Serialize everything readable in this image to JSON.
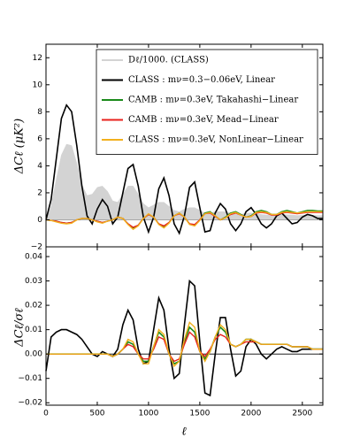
{
  "chart_data": [
    {
      "type": "line",
      "ylabel": "ΔCℓ (μK²)",
      "x": [
        0,
        50,
        100,
        150,
        200,
        250,
        300,
        350,
        400,
        450,
        500,
        550,
        600,
        650,
        700,
        750,
        800,
        850,
        900,
        950,
        1000,
        1050,
        1100,
        1150,
        1200,
        1250,
        1300,
        1350,
        1400,
        1450,
        1500,
        1550,
        1600,
        1650,
        1700,
        1750,
        1800,
        1850,
        1900,
        1950,
        2000,
        2050,
        2100,
        2150,
        2200,
        2250,
        2300,
        2350,
        2400,
        2450,
        2500,
        2550,
        2600,
        2650,
        2700
      ],
      "xlim": [
        0,
        2700
      ],
      "ylim": [
        -2,
        13
      ],
      "yticks": [
        {
          "value": -2,
          "label": "−2"
        },
        0,
        2,
        4,
        6,
        8,
        10,
        12
      ],
      "legend": "upper right",
      "series": [
        {
          "name": "Dℓ/1000. (CLASS)",
          "color": "#d3d3d3",
          "style": "area",
          "values": [
            0,
            1.0,
            3.0,
            4.8,
            5.6,
            5.5,
            4.2,
            2.6,
            1.8,
            1.9,
            2.4,
            2.5,
            2.1,
            1.4,
            1.3,
            1.9,
            2.5,
            2.5,
            1.9,
            1.2,
            0.9,
            1.1,
            1.3,
            1.3,
            1.0,
            0.7,
            0.6,
            0.8,
            0.9,
            0.9,
            0.7,
            0.5,
            0.5,
            0.6,
            0.6,
            0.6,
            0.5,
            0.4,
            0.4,
            0.5,
            0.5,
            0.45,
            0.4,
            0.35,
            0.35,
            0.4,
            0.4,
            0.38,
            0.35,
            0.32,
            0.33,
            0.34,
            0.33,
            0.32,
            0.31
          ]
        },
        {
          "name": "CLASS : mν=0.3−0.06eV, Linear",
          "color": "#000000",
          "values": [
            0,
            1.5,
            4.5,
            7.5,
            8.5,
            8.0,
            5.5,
            2.5,
            0.3,
            -0.3,
            0.8,
            1.5,
            1.0,
            -0.3,
            0.2,
            2.0,
            3.8,
            4.1,
            2.5,
            0.2,
            -0.9,
            0.2,
            2.3,
            3.1,
            1.8,
            -0.3,
            -1.0,
            0.3,
            2.4,
            2.8,
            0.9,
            -0.9,
            -0.8,
            0.5,
            1.2,
            0.8,
            -0.3,
            -0.8,
            -0.3,
            0.6,
            0.9,
            0.4,
            -0.3,
            -0.6,
            -0.3,
            0.3,
            0.5,
            0.1,
            -0.3,
            -0.2,
            0.2,
            0.4,
            0.3,
            0.1,
            0.1
          ]
        },
        {
          "name": "CAMB : mν=0.3eV, Takahashi−Linear",
          "color": "#1a8a1a",
          "values": [
            0,
            -0.05,
            -0.1,
            -0.2,
            -0.25,
            -0.2,
            0,
            0.1,
            0.1,
            0,
            -0.1,
            -0.2,
            -0.1,
            0,
            0.2,
            0.1,
            -0.3,
            -0.6,
            -0.4,
            0.1,
            0.4,
            0.2,
            -0.3,
            -0.5,
            -0.2,
            0.3,
            0.5,
            0.2,
            -0.3,
            -0.4,
            0,
            0.5,
            0.6,
            0.3,
            0,
            0.2,
            0.5,
            0.6,
            0.4,
            0.2,
            0.3,
            0.6,
            0.7,
            0.6,
            0.4,
            0.4,
            0.6,
            0.7,
            0.6,
            0.5,
            0.6,
            0.7,
            0.7,
            0.65,
            0.65
          ]
        },
        {
          "name": "CAMB : mν=0.3eV, Mead−Linear",
          "color": "#e8211c",
          "values": [
            0,
            -0.05,
            -0.1,
            -0.2,
            -0.25,
            -0.2,
            0,
            0.1,
            0.1,
            0,
            -0.1,
            -0.2,
            -0.1,
            0,
            0.2,
            0.1,
            -0.3,
            -0.55,
            -0.4,
            0.1,
            0.4,
            0.2,
            -0.3,
            -0.45,
            -0.2,
            0.3,
            0.45,
            0.2,
            -0.3,
            -0.35,
            0,
            0.45,
            0.5,
            0.25,
            0,
            0.15,
            0.4,
            0.5,
            0.35,
            0.2,
            0.25,
            0.5,
            0.55,
            0.5,
            0.35,
            0.35,
            0.5,
            0.55,
            0.5,
            0.45,
            0.5,
            0.55,
            0.55,
            0.55,
            0.55
          ]
        },
        {
          "name": "CLASS : mν=0.3eV, NonLinear−Linear",
          "color": "#f2b01e",
          "values": [
            0,
            -0.05,
            -0.15,
            -0.25,
            -0.3,
            -0.25,
            0,
            0.1,
            0.1,
            0,
            -0.15,
            -0.25,
            -0.1,
            0,
            0.2,
            0.1,
            -0.35,
            -0.7,
            -0.45,
            0.1,
            0.45,
            0.2,
            -0.35,
            -0.6,
            -0.25,
            0.3,
            0.5,
            0.2,
            -0.35,
            -0.45,
            -0.05,
            0.45,
            0.55,
            0.3,
            0,
            0.15,
            0.45,
            0.55,
            0.35,
            0.2,
            0.25,
            0.55,
            0.6,
            0.55,
            0.4,
            0.4,
            0.55,
            0.6,
            0.55,
            0.5,
            0.55,
            0.6,
            0.6,
            0.6,
            0.6
          ]
        }
      ]
    },
    {
      "type": "line",
      "xlabel": "ℓ",
      "ylabel": "ΔCℓ/σℓ",
      "x": [
        0,
        50,
        100,
        150,
        200,
        250,
        300,
        350,
        400,
        450,
        500,
        550,
        600,
        650,
        700,
        750,
        800,
        850,
        900,
        950,
        1000,
        1050,
        1100,
        1150,
        1200,
        1250,
        1300,
        1350,
        1400,
        1450,
        1500,
        1550,
        1600,
        1650,
        1700,
        1750,
        1800,
        1850,
        1900,
        1950,
        2000,
        2050,
        2100,
        2150,
        2200,
        2250,
        2300,
        2350,
        2400,
        2450,
        2500,
        2550,
        2600,
        2650,
        2700
      ],
      "xlim": [
        0,
        2700
      ],
      "xticks": [
        0,
        500,
        1000,
        1500,
        2000,
        2500
      ],
      "ylim": [
        -0.021,
        0.044
      ],
      "yticks": [
        {
          "value": -0.02,
          "label": "−0.02"
        },
        {
          "value": -0.01,
          "label": "−0.01"
        },
        {
          "value": 0,
          "label": "0.00"
        },
        0.01,
        0.02,
        0.03,
        0.04
      ],
      "series": [
        {
          "color": "#000000",
          "values": [
            -0.007,
            0.007,
            0.009,
            0.01,
            0.01,
            0.009,
            0.008,
            0.006,
            0.003,
            0.0,
            -0.001,
            0.001,
            0.0,
            -0.001,
            0.002,
            0.012,
            0.018,
            0.014,
            0.002,
            -0.004,
            -0.003,
            0.01,
            0.023,
            0.018,
            0.002,
            -0.01,
            -0.008,
            0.012,
            0.03,
            0.028,
            0.005,
            -0.016,
            -0.017,
            0.0,
            0.015,
            0.015,
            0.002,
            -0.009,
            -0.007,
            0.003,
            0.006,
            0.004,
            0.0,
            -0.002,
            0.0,
            0.002,
            0.003,
            0.002,
            0.001,
            0.001,
            0.002,
            0.002,
            0.002,
            0.002,
            0.002
          ]
        },
        {
          "color": "#1a8a1a",
          "values": [
            0,
            0,
            0,
            0,
            0,
            0,
            0,
            0,
            0,
            0,
            0,
            0,
            0,
            -0.001,
            0,
            0.002,
            0.005,
            0.004,
            0,
            -0.003,
            -0.003,
            0.003,
            0.009,
            0.007,
            0.0,
            -0.004,
            -0.003,
            0.005,
            0.011,
            0.009,
            0.001,
            -0.002,
            0.001,
            0.007,
            0.011,
            0.009,
            0.004,
            0.003,
            0.004,
            0.006,
            0.006,
            0.005,
            0.004,
            0.004,
            0.004,
            0.004,
            0.004,
            0.004,
            0.003,
            0.003,
            0.003,
            0.003,
            0.002,
            0.002,
            0.002
          ]
        },
        {
          "color": "#e8211c",
          "values": [
            0,
            0,
            0,
            0,
            0,
            0,
            0,
            0,
            0,
            0,
            0,
            0,
            0,
            -0.001,
            0,
            0.002,
            0.004,
            0.003,
            0,
            -0.002,
            -0.002,
            0.002,
            0.007,
            0.006,
            0.0,
            -0.003,
            -0.002,
            0.004,
            0.009,
            0.007,
            0.001,
            -0.001,
            0.002,
            0.006,
            0.008,
            0.007,
            0.004,
            0.003,
            0.004,
            0.005,
            0.005,
            0.005,
            0.004,
            0.004,
            0.004,
            0.004,
            0.004,
            0.004,
            0.003,
            0.003,
            0.003,
            0.003,
            0.002,
            0.002,
            0.002
          ]
        },
        {
          "color": "#f2b01e",
          "values": [
            0,
            0,
            0,
            0,
            0,
            0,
            0,
            0,
            0,
            0,
            0,
            0,
            0,
            -0.001,
            0,
            0.002,
            0.006,
            0.005,
            0,
            -0.004,
            -0.004,
            0.003,
            0.01,
            0.008,
            0.0,
            -0.005,
            -0.003,
            0.006,
            0.013,
            0.011,
            0.001,
            -0.003,
            0.001,
            0.007,
            0.012,
            0.01,
            0.004,
            0.003,
            0.004,
            0.006,
            0.006,
            0.005,
            0.004,
            0.004,
            0.004,
            0.004,
            0.004,
            0.004,
            0.003,
            0.003,
            0.003,
            0.003,
            0.002,
            0.002,
            0.002
          ]
        }
      ]
    }
  ]
}
